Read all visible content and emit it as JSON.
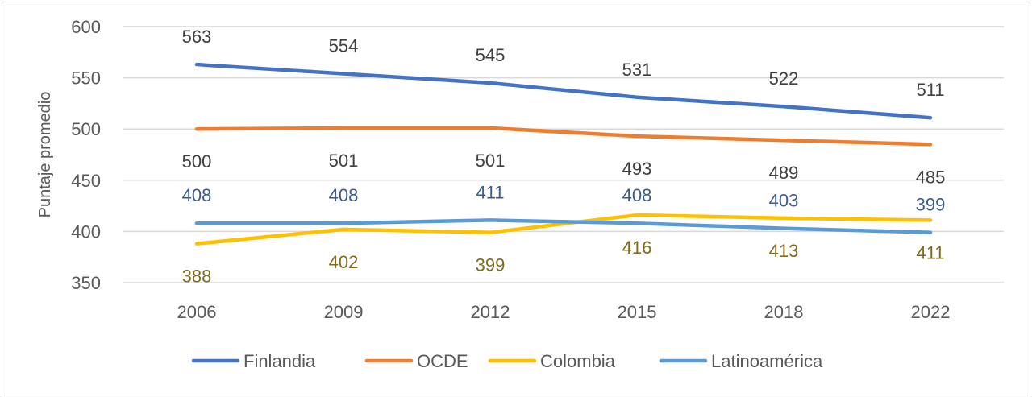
{
  "chart_data": {
    "type": "line",
    "title": "",
    "xlabel": "",
    "ylabel": "Puntaje promedio",
    "categories": [
      "2006",
      "2009",
      "2012",
      "2015",
      "2018",
      "2022"
    ],
    "ylim": [
      350,
      600
    ],
    "yticks": [
      350,
      400,
      450,
      500,
      550,
      600
    ],
    "grid": true,
    "legend": "bottom",
    "series": [
      {
        "name": "Finlandia",
        "values": [
          563,
          554,
          545,
          531,
          522,
          511
        ],
        "color": "#4472C4",
        "label_color": "#404040",
        "label_pos": "above"
      },
      {
        "name": "OCDE",
        "values": [
          500,
          501,
          501,
          493,
          489,
          485
        ],
        "color": "#ED7D31",
        "label_color": "#404040",
        "label_pos": "below"
      },
      {
        "name": "Colombia",
        "values": [
          388,
          402,
          399,
          416,
          413,
          411
        ],
        "color": "#FFC000",
        "label_color": "#7F6A1E",
        "label_pos": "below"
      },
      {
        "name": "Latinoamérica",
        "values": [
          408,
          408,
          411,
          408,
          403,
          399
        ],
        "color": "#5B9BD5",
        "label_color": "#3D5A8C",
        "label_pos": "above"
      }
    ]
  }
}
